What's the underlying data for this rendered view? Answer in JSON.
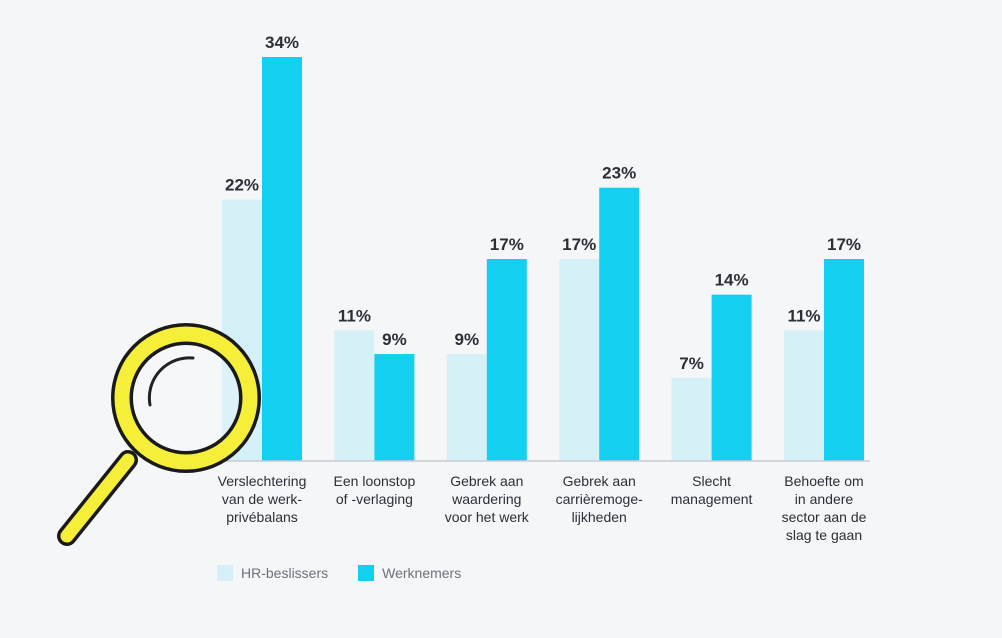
{
  "chart_data": {
    "type": "bar",
    "categories": [
      [
        "Verslechtering",
        "van de werk-",
        "privébalans"
      ],
      [
        "Een loonstop",
        "of -verlaging"
      ],
      [
        "Gebrek aan",
        "waardering",
        "voor het werk"
      ],
      [
        "Gebrek aan",
        "carrièremoge-",
        "lijkheden"
      ],
      [
        "Slecht",
        "management"
      ],
      [
        "Behoefte om",
        "in andere",
        "sector aan de",
        "slag te gaan"
      ]
    ],
    "series": [
      {
        "name": "HR-beslissers",
        "color": "#d6f0f7",
        "values": [
          22,
          11,
          9,
          17,
          7,
          11
        ],
        "labels": [
          "22%",
          "11%",
          "9%",
          "17%",
          "7%",
          "11%"
        ]
      },
      {
        "name": "Werknemers",
        "color": "#14d0f0",
        "values": [
          34,
          9,
          17,
          23,
          14,
          17
        ],
        "labels": [
          "34%",
          "9%",
          "17%",
          "23%",
          "14%",
          "17%"
        ]
      }
    ],
    "ylim": [
      0,
      34
    ],
    "grid": false,
    "legend_position": "bottom-left"
  },
  "decoration": {
    "magnifier_color": "#f5ef3a"
  }
}
